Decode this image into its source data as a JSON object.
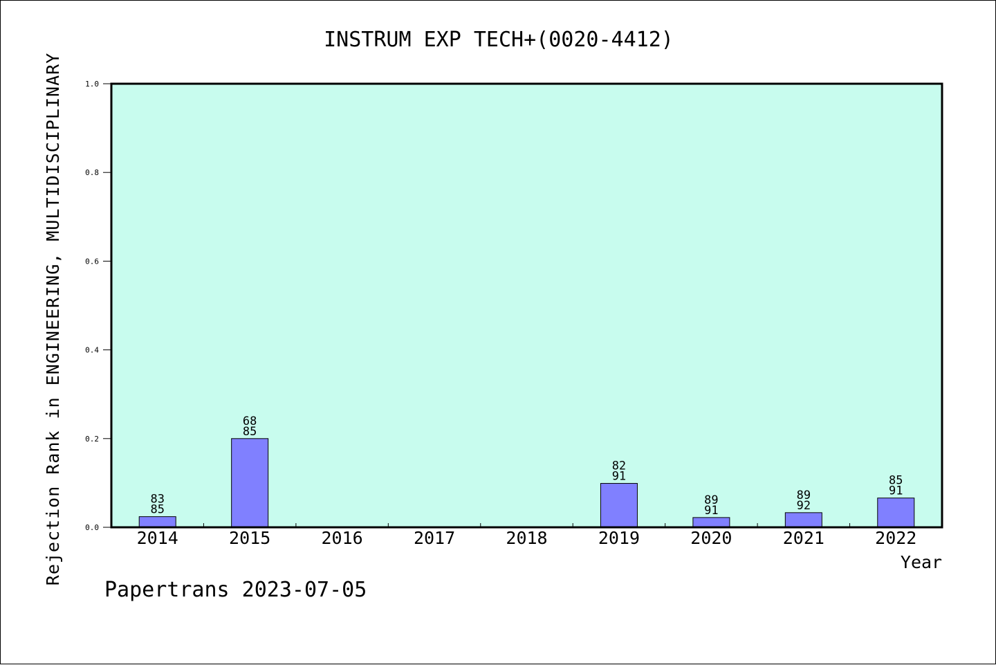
{
  "footer": {
    "text": "Papertrans 2023-07-05"
  },
  "colors": {
    "plot_background": "#c8fcee",
    "bar_fill": "#8080ff",
    "axis": "#000000"
  },
  "chart_data": {
    "type": "bar",
    "title": "INSTRUM EXP TECH+(0020-4412)",
    "xlabel": "Year",
    "ylabel": "Rejection Rank in ENGINEERING, MULTIDISCIPLINARY",
    "ylim": [
      0,
      1
    ],
    "yticks": [
      "0.0",
      "0.2",
      "0.4",
      "0.6",
      "0.8",
      "1.0"
    ],
    "grid": false,
    "categories": [
      "2014",
      "2015",
      "2016",
      "2017",
      "2018",
      "2019",
      "2020",
      "2021",
      "2022"
    ],
    "values": [
      0.024,
      0.2,
      null,
      null,
      null,
      0.099,
      0.022,
      0.033,
      0.066
    ],
    "label_rank": [
      "83",
      "68",
      "",
      "",
      "",
      "82",
      "89",
      "89",
      "85"
    ],
    "label_total": [
      "85",
      "85",
      "",
      "",
      "",
      "91",
      "91",
      "92",
      "91"
    ]
  }
}
